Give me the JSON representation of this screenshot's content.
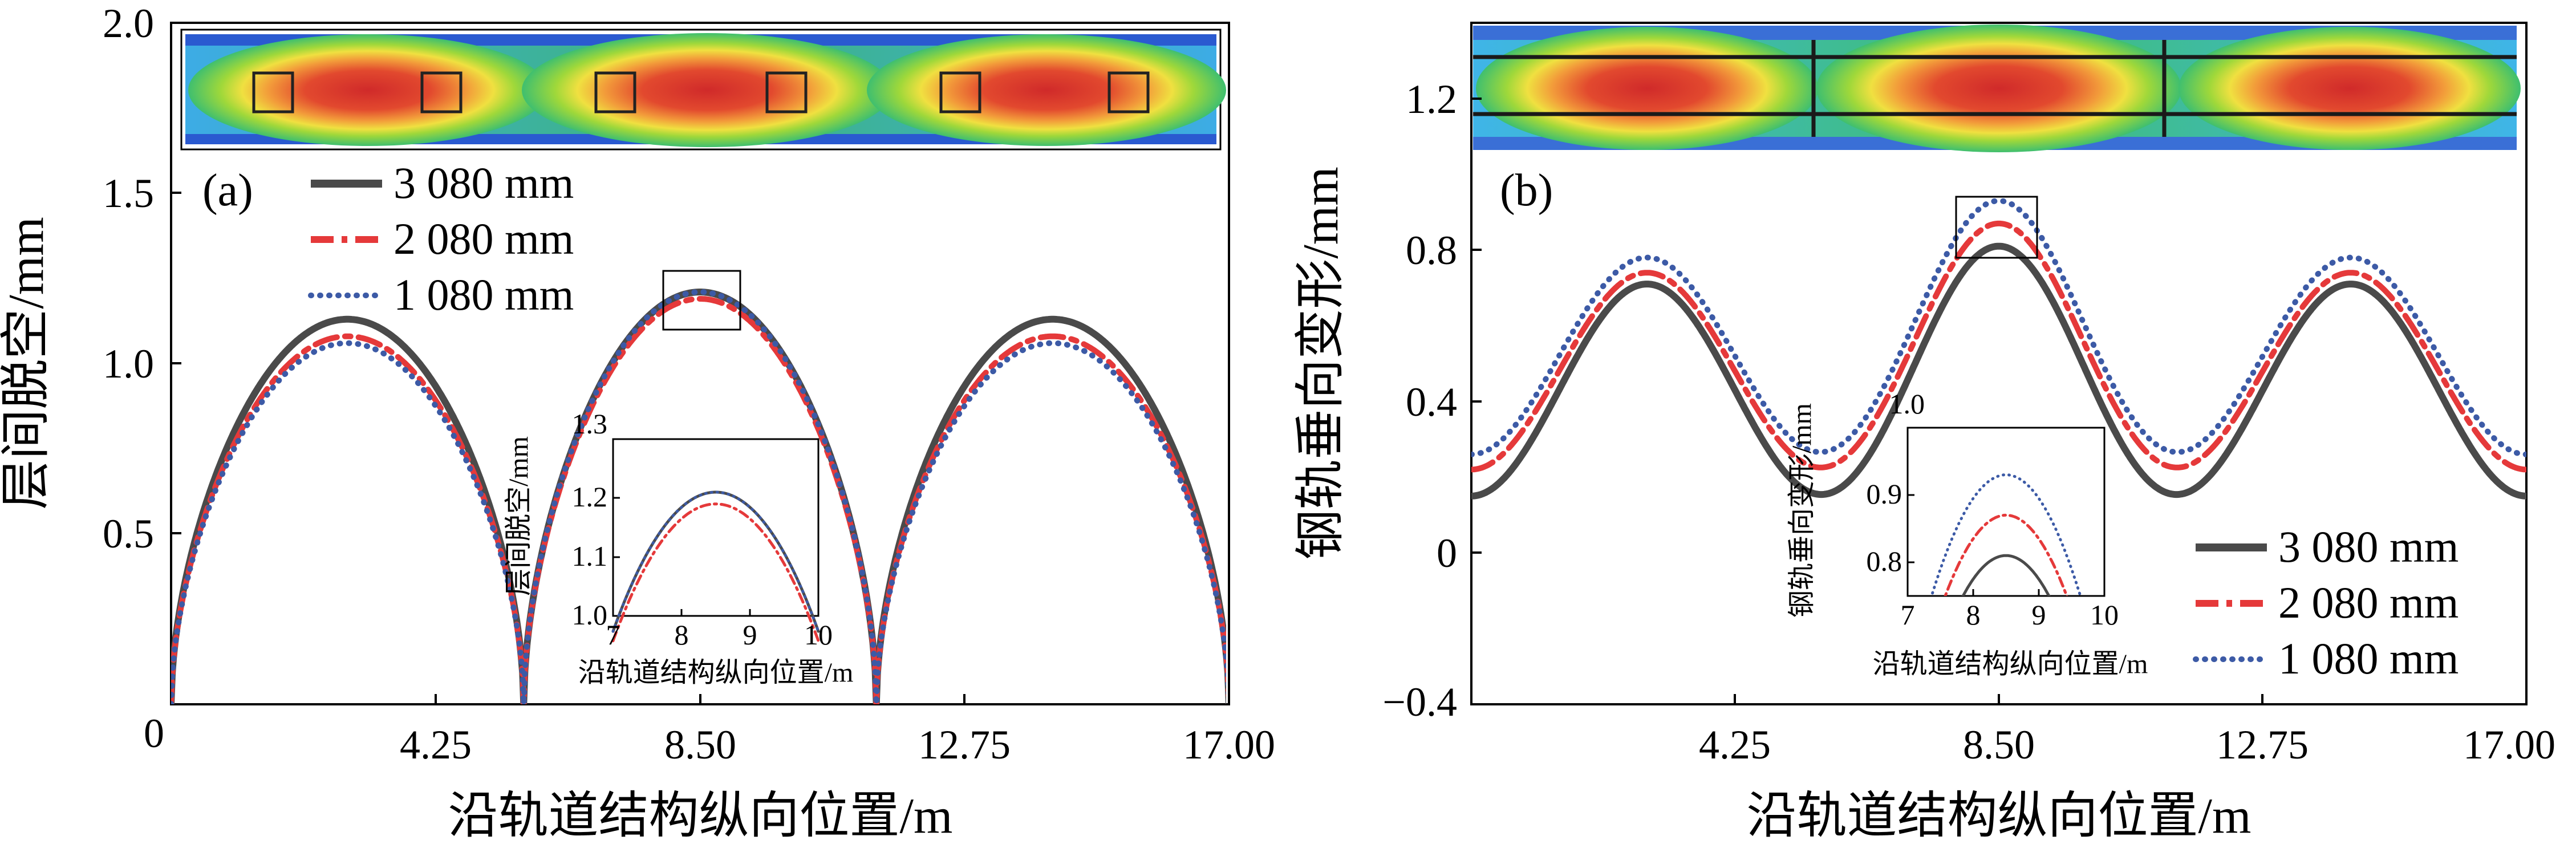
{
  "chart_data": [
    {
      "type": "line",
      "panel_label": "(a)",
      "xlabel": "沿轨道结构纵向位置/m",
      "ylabel": "层间脱空/mm",
      "xlim": [
        0,
        17
      ],
      "ylim": [
        0,
        2.0
      ],
      "xticks": [
        "0",
        "4.25",
        "8.50",
        "12.75",
        "17.00"
      ],
      "yticks": [
        "0.5",
        "1.0",
        "1.5",
        "2.0"
      ],
      "legend": {
        "position": "top-left"
      },
      "series": [
        {
          "name": "3 080 mm",
          "color": "#4a4a4a",
          "style": "solid",
          "kind": "arch",
          "peaks": [
            1.13,
            1.21,
            1.13
          ]
        },
        {
          "name": "2 080 mm",
          "color": "#e5393a",
          "style": "dashdot",
          "kind": "arch",
          "peaks": [
            1.08,
            1.19,
            1.08
          ]
        },
        {
          "name": "1 080 mm",
          "color": "#3c5aa6",
          "style": "dotted",
          "kind": "arch",
          "peaks": [
            1.06,
            1.21,
            1.06
          ]
        }
      ],
      "inset": {
        "xlabel": "沿轨道结构纵向位置/m",
        "ylabel": "层间脱空/mm",
        "xlim": [
          7,
          10
        ],
        "ylim": [
          1.0,
          1.3
        ],
        "xticks": [
          "7",
          "8",
          "9",
          "10"
        ],
        "yticks": [
          "1.0",
          "1.1",
          "1.2",
          "1.3"
        ]
      },
      "contour_colors": [
        "#1a44c9",
        "#3fb5e8",
        "#3fbf6f",
        "#9fd83a",
        "#f0e040",
        "#f29a3a",
        "#e2492e",
        "#d02a2a"
      ]
    },
    {
      "type": "line",
      "panel_label": "(b)",
      "xlabel": "沿轨道结构纵向位置/m",
      "ylabel": "钢轨垂向变形/mm",
      "xlim": [
        0,
        17
      ],
      "ylim": [
        -0.4,
        1.4
      ],
      "xticks": [
        "4.25",
        "8.50",
        "12.75",
        "17.00"
      ],
      "yticks": [
        "−0.4",
        "0",
        "0.4",
        "0.8",
        "1.2"
      ],
      "legend": {
        "position": "bottom-right"
      },
      "series": [
        {
          "name": "3 080 mm",
          "color": "#4a4a4a",
          "style": "solid",
          "kind": "wave",
          "mean": 0.43,
          "amp": 0.28,
          "mid_peak": 0.81
        },
        {
          "name": "2 080 mm",
          "color": "#e5393a",
          "style": "dashdot",
          "kind": "wave",
          "mean": 0.48,
          "amp": 0.26,
          "mid_peak": 0.87
        },
        {
          "name": "1 080 mm",
          "color": "#3c5aa6",
          "style": "dotted",
          "kind": "wave",
          "mean": 0.52,
          "amp": 0.26,
          "mid_peak": 0.93
        }
      ],
      "inset": {
        "xlabel": "沿轨道结构纵向位置/m",
        "ylabel": "钢轨垂向变形/mm",
        "xlim": [
          7,
          10
        ],
        "ylim": [
          0.75,
          1.0
        ],
        "xticks": [
          "7",
          "8",
          "9",
          "10"
        ],
        "yticks": [
          "0.8",
          "0.9",
          "1.0"
        ]
      }
    }
  ]
}
